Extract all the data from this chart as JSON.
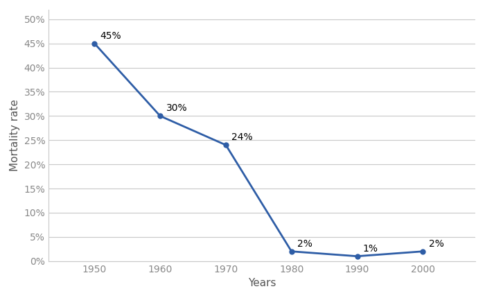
{
  "x": [
    1950,
    1960,
    1970,
    1980,
    1990,
    2000
  ],
  "y": [
    45,
    30,
    24,
    2,
    1,
    2
  ],
  "labels": [
    "45%",
    "30%",
    "24%",
    "2%",
    "1%",
    "2%"
  ],
  "xlabel": "Years",
  "ylabel": "Mortality rate",
  "xlim": [
    1943,
    2008
  ],
  "ylim": [
    0,
    52
  ],
  "yticks": [
    0,
    5,
    10,
    15,
    20,
    25,
    30,
    35,
    40,
    45,
    50
  ],
  "xticks": [
    1950,
    1960,
    1970,
    1980,
    1990,
    2000
  ],
  "line_color": "#2E5DA6",
  "marker": "o",
  "marker_size": 5,
  "line_width": 2.0,
  "grid_color": "#c8c8c8",
  "background_color": "#ffffff",
  "label_fontsize": 10,
  "axis_label_fontsize": 11,
  "tick_fontsize": 10,
  "tick_color": "#888888"
}
